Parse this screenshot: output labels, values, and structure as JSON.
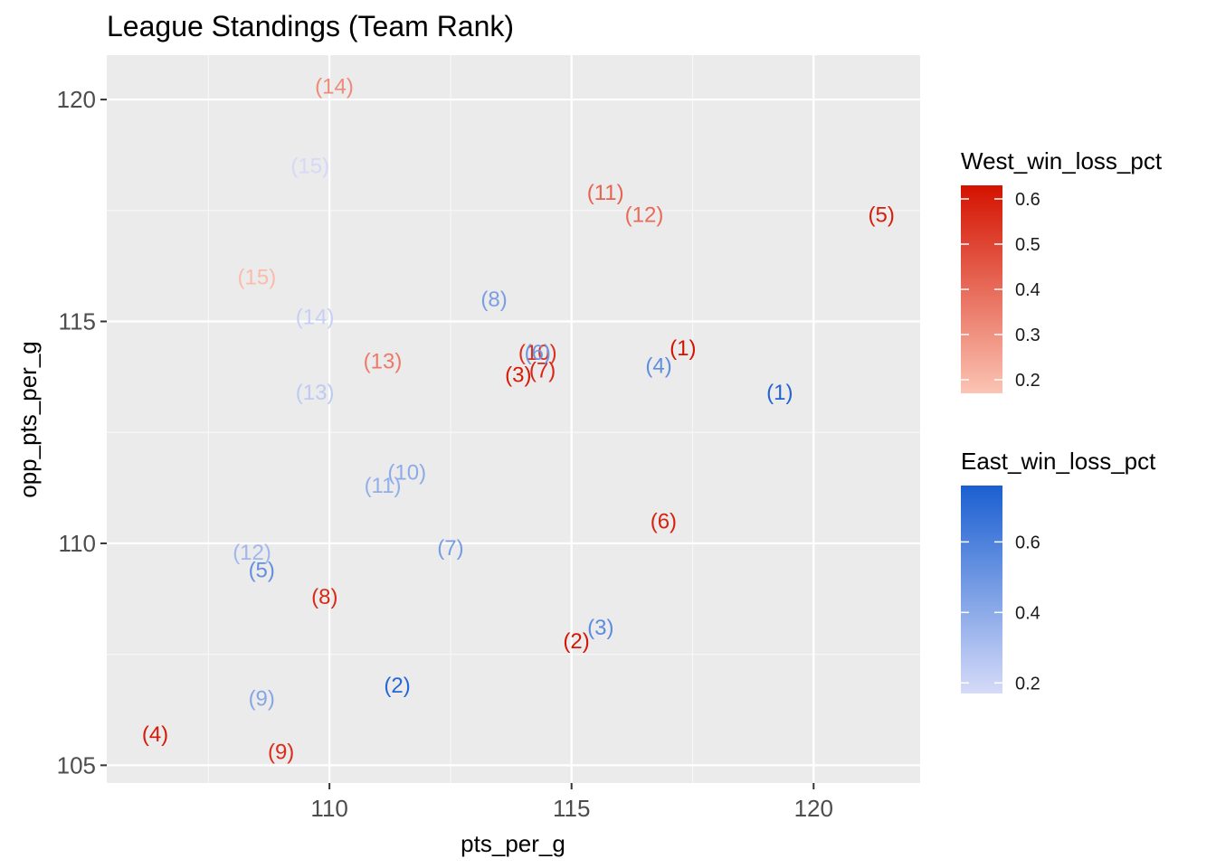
{
  "chart_data": {
    "type": "scatter",
    "title": "League Standings (Team Rank)",
    "xlabel": "pts_per_g",
    "ylabel": "opp_pts_per_g",
    "xlim": [
      105.4,
      122.2
    ],
    "ylim": [
      104.6,
      121.0
    ],
    "x_ticks": [
      110,
      115,
      120
    ],
    "y_ticks": [
      105,
      110,
      115,
      120
    ],
    "grid": true,
    "legend_position": "right",
    "series": [
      {
        "name": "West_win_loss_pct",
        "color_low": "#fbc4b4",
        "color_high": "#d41200",
        "color_range": [
          0.17,
          0.63
        ],
        "legend_ticks": [
          0.2,
          0.3,
          0.4,
          0.5,
          0.6
        ],
        "points": [
          {
            "label": "(1)",
            "x": 117.3,
            "y": 114.4,
            "value": 0.63
          },
          {
            "label": "(2)",
            "x": 115.1,
            "y": 107.8,
            "value": 0.62
          },
          {
            "label": "(3)",
            "x": 113.9,
            "y": 113.8,
            "value": 0.61
          },
          {
            "label": "(4)",
            "x": 106.4,
            "y": 105.7,
            "value": 0.61
          },
          {
            "label": "(5)",
            "x": 121.4,
            "y": 117.4,
            "value": 0.6
          },
          {
            "label": "(6)",
            "x": 116.9,
            "y": 110.5,
            "value": 0.59
          },
          {
            "label": "(7)",
            "x": 114.4,
            "y": 113.9,
            "value": 0.58
          },
          {
            "label": "(8)",
            "x": 109.9,
            "y": 108.8,
            "value": 0.57
          },
          {
            "label": "(9)",
            "x": 109.0,
            "y": 105.3,
            "value": 0.56
          },
          {
            "label": "(10)",
            "x": 114.3,
            "y": 114.3,
            "value": 0.55
          },
          {
            "label": "(11)",
            "x": 115.7,
            "y": 117.9,
            "value": 0.42
          },
          {
            "label": "(12)",
            "x": 116.5,
            "y": 117.4,
            "value": 0.4
          },
          {
            "label": "(13)",
            "x": 111.1,
            "y": 114.1,
            "value": 0.36
          },
          {
            "label": "(14)",
            "x": 110.1,
            "y": 120.3,
            "value": 0.32
          },
          {
            "label": "(15)",
            "x": 108.5,
            "y": 116.0,
            "value": 0.19
          }
        ]
      },
      {
        "name": "East_win_loss_pct",
        "color_low": "#d6dbf8",
        "color_high": "#1a5fd1",
        "color_range": [
          0.17,
          0.76
        ],
        "legend_ticks": [
          0.2,
          0.4,
          0.6
        ],
        "points": [
          {
            "label": "(1)",
            "x": 119.3,
            "y": 113.4,
            "value": 0.74
          },
          {
            "label": "(2)",
            "x": 111.4,
            "y": 106.8,
            "value": 0.72
          },
          {
            "label": "(3)",
            "x": 115.6,
            "y": 108.1,
            "value": 0.55
          },
          {
            "label": "(4)",
            "x": 116.8,
            "y": 114.0,
            "value": 0.54
          },
          {
            "label": "(5)",
            "x": 108.6,
            "y": 109.4,
            "value": 0.53
          },
          {
            "label": "(6)",
            "x": 114.3,
            "y": 114.3,
            "value": 0.5
          },
          {
            "label": "(7)",
            "x": 112.5,
            "y": 109.9,
            "value": 0.47
          },
          {
            "label": "(8)",
            "x": 113.4,
            "y": 115.5,
            "value": 0.46
          },
          {
            "label": "(9)",
            "x": 108.6,
            "y": 106.5,
            "value": 0.42
          },
          {
            "label": "(10)",
            "x": 111.6,
            "y": 111.6,
            "value": 0.4
          },
          {
            "label": "(11)",
            "x": 111.1,
            "y": 111.3,
            "value": 0.38
          },
          {
            "label": "(12)",
            "x": 108.4,
            "y": 109.8,
            "value": 0.34
          },
          {
            "label": "(13)",
            "x": 109.7,
            "y": 113.4,
            "value": 0.25
          },
          {
            "label": "(14)",
            "x": 109.7,
            "y": 115.1,
            "value": 0.22
          },
          {
            "label": "(15)",
            "x": 109.6,
            "y": 118.5,
            "value": 0.18
          }
        ]
      }
    ]
  }
}
